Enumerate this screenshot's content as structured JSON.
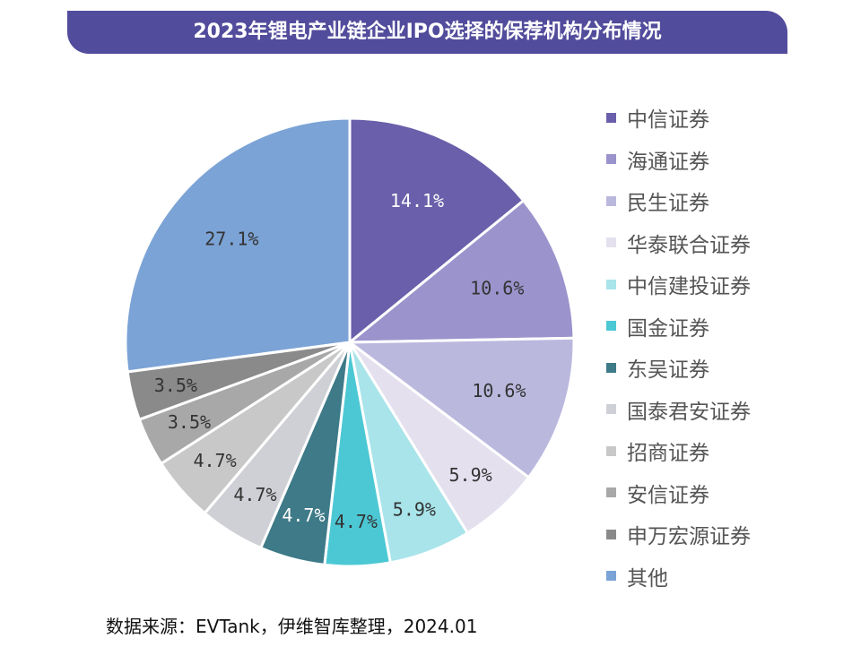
{
  "title": "2023年锂电产业链企业IPO选择的保荐机构分布情况",
  "source": "数据来源：EVTank，伊维智库整理，2024.01",
  "chart_data": {
    "type": "pie",
    "title": "2023年锂电产业链企业IPO选择的保荐机构分布情况",
    "legend_placement": "right",
    "start": "top, clockwise",
    "categories": [
      "中信证券",
      "海通证券",
      "民生证券",
      "华泰联合证券",
      "中信建投证券",
      "国金证券",
      "东吴证券",
      "国泰君安证券",
      "招商证券",
      "安信证券",
      "申万宏源证券",
      "其他"
    ],
    "values": [
      14.1,
      10.6,
      10.6,
      5.9,
      5.9,
      4.7,
      4.7,
      4.7,
      4.7,
      3.5,
      3.5,
      27.1
    ],
    "labels": [
      "14.1%",
      "10.6%",
      "10.6%",
      "5.9%",
      "5.9%",
      "4.7%",
      "4.7%",
      "4.7%",
      "4.7%",
      "3.5%",
      "3.5%",
      "27.1%"
    ],
    "colors": [
      "#6a5faa",
      "#9b93cc",
      "#bbb8de",
      "#e4e0ee",
      "#a8e4ea",
      "#4cc8d4",
      "#3e7a88",
      "#cfd0d6",
      "#c8c8c8",
      "#a8a8a8",
      "#8a8a8a",
      "#7ba3d6"
    ],
    "label_colors": [
      "#ffffff",
      "#333333",
      "#333333",
      "#333333",
      "#333333",
      "#333333",
      "#ffffff",
      "#333333",
      "#333333",
      "#333333",
      "#333333",
      "#333333"
    ]
  }
}
